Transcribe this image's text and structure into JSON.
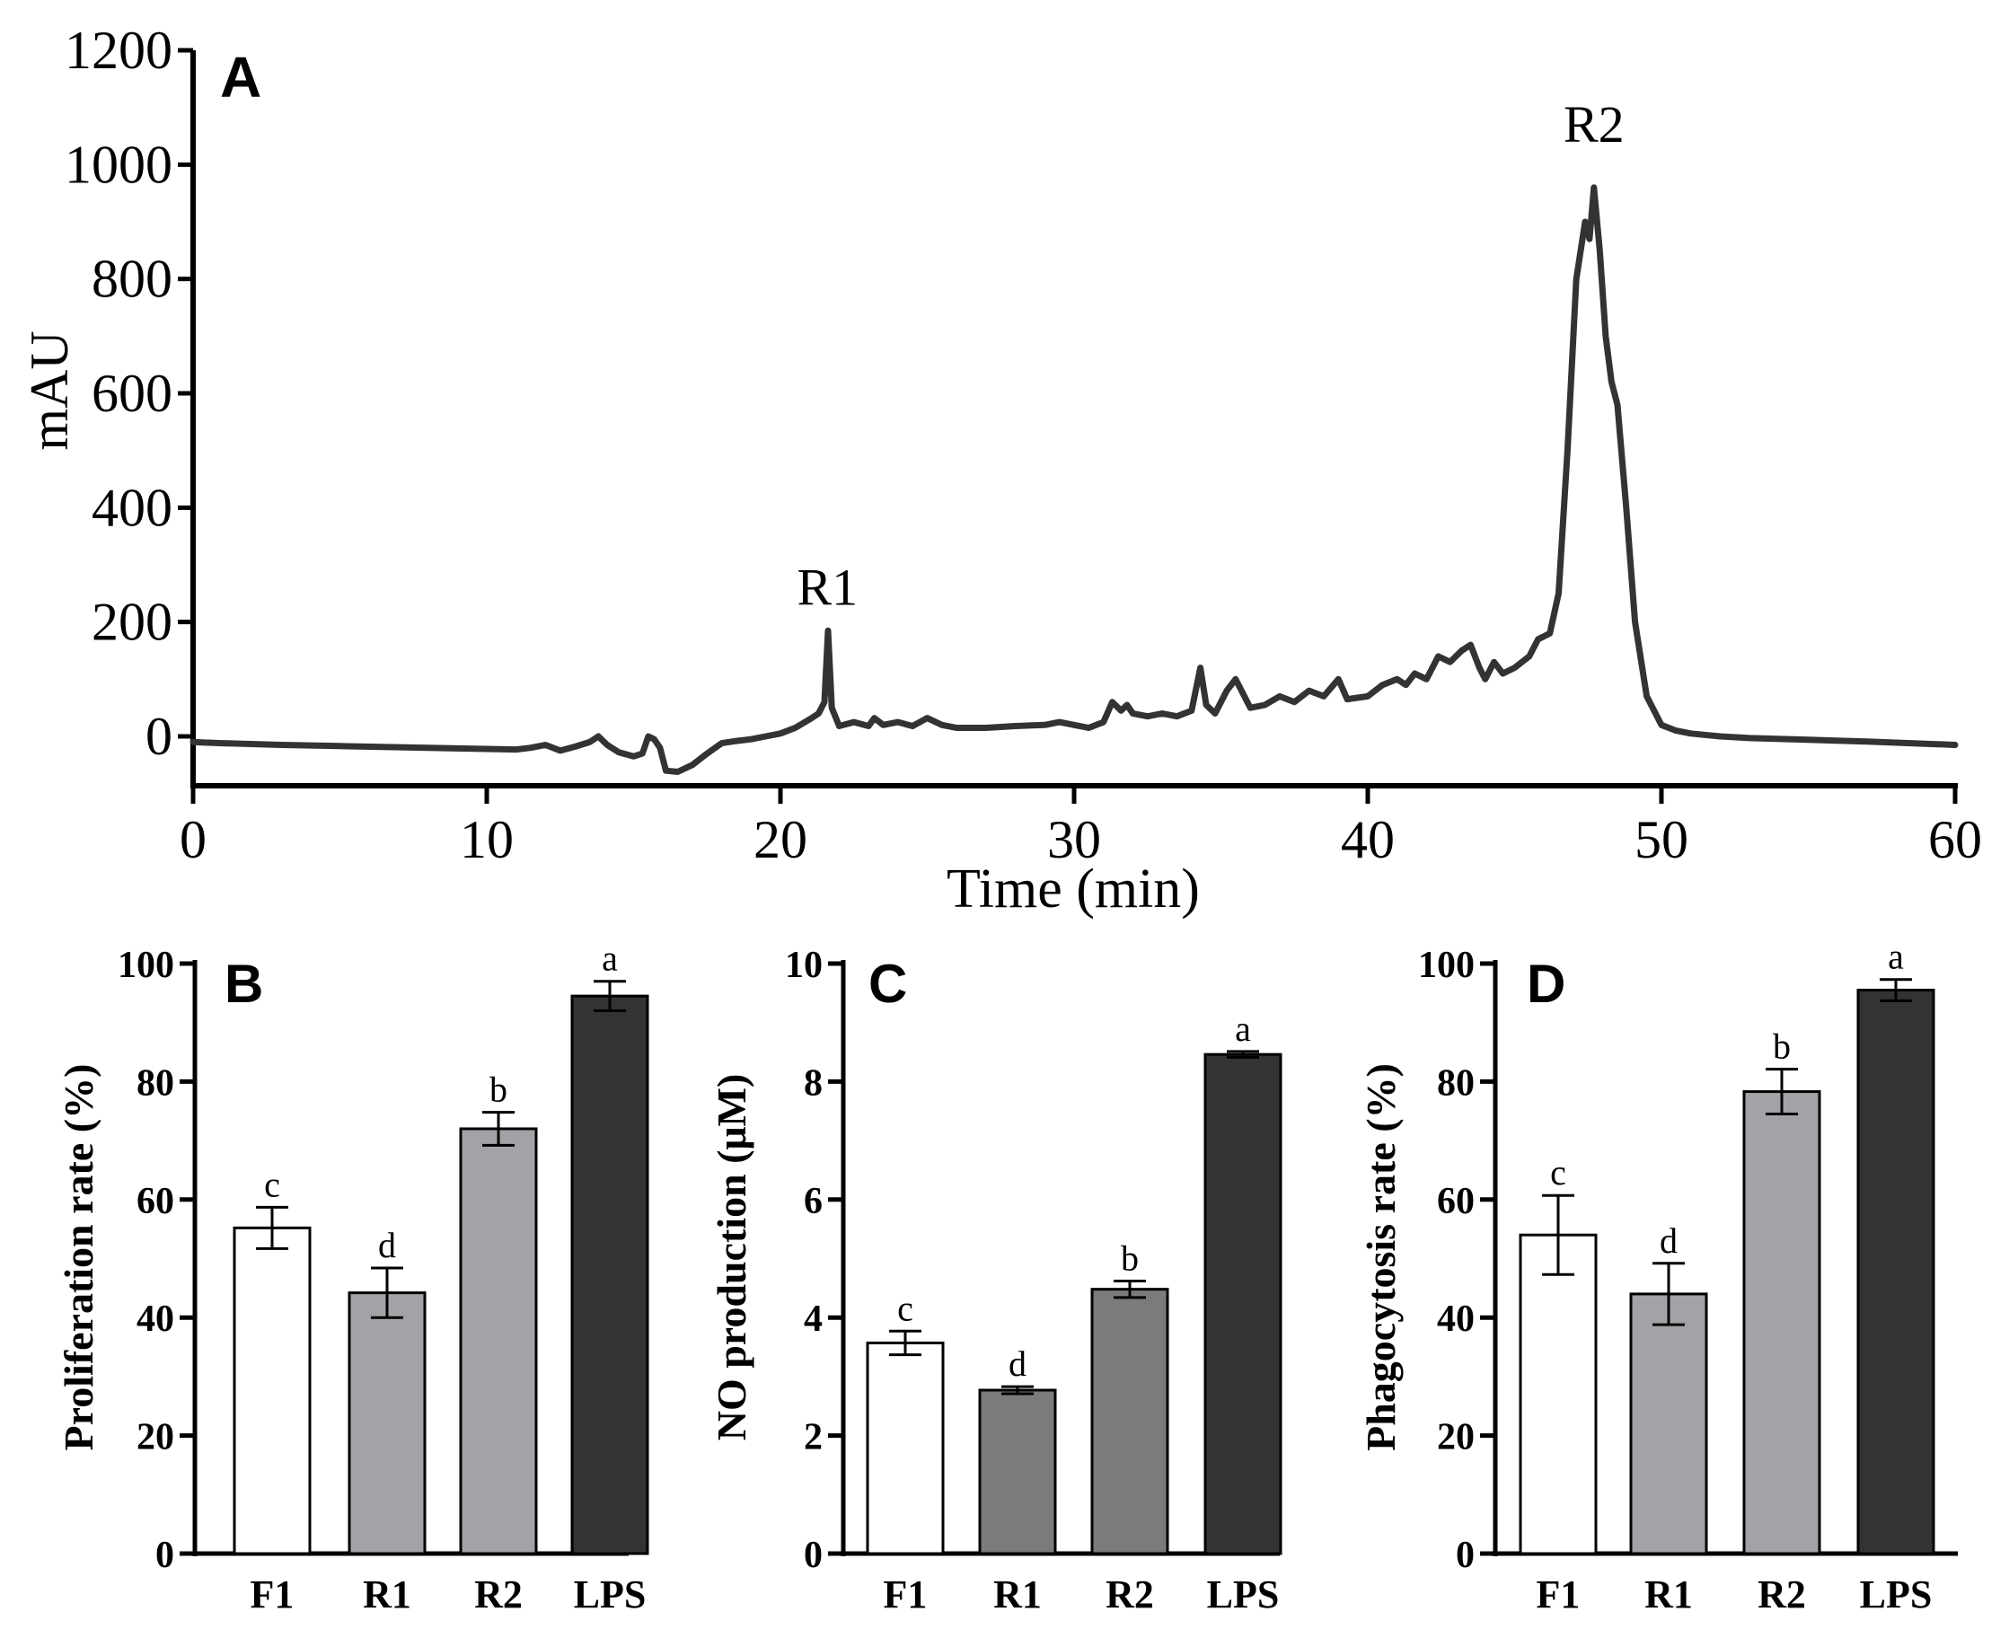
{
  "chart_data": [
    {
      "panel_letter": "A",
      "type": "line",
      "title": "",
      "xlabel": "Time (min)",
      "ylabel": "mAU",
      "xlim": [
        0,
        60
      ],
      "ylim": [
        -80,
        1200
      ],
      "x_ticks": [
        "0",
        "10",
        "20",
        "30",
        "40",
        "50",
        "60"
      ],
      "y_ticks": [
        "0",
        "200",
        "400",
        "600",
        "800",
        "1000",
        "1200"
      ],
      "peak_labels": [
        {
          "text": "R1",
          "x": 21.6,
          "y": 230
        },
        {
          "text": "R2",
          "x": 47.7,
          "y": 1040
        }
      ],
      "series": [
        {
          "name": "chromatogram",
          "color": "#333333",
          "points": [
            [
              0,
              -10
            ],
            [
              1,
              -12
            ],
            [
              3,
              -15
            ],
            [
              5,
              -17
            ],
            [
              8,
              -20
            ],
            [
              10,
              -22
            ],
            [
              11,
              -23
            ],
            [
              11.5,
              -20
            ],
            [
              12,
              -15
            ],
            [
              12.5,
              -25
            ],
            [
              13,
              -18
            ],
            [
              13.5,
              -10
            ],
            [
              13.8,
              0
            ],
            [
              14.1,
              -15
            ],
            [
              14.5,
              -28
            ],
            [
              15,
              -35
            ],
            [
              15.3,
              -30
            ],
            [
              15.5,
              0
            ],
            [
              15.7,
              -5
            ],
            [
              15.9,
              -20
            ],
            [
              16.1,
              -60
            ],
            [
              16.5,
              -62
            ],
            [
              17,
              -50
            ],
            [
              17.5,
              -30
            ],
            [
              18,
              -12
            ],
            [
              18.5,
              -8
            ],
            [
              19,
              -5
            ],
            [
              19.5,
              0
            ],
            [
              20,
              5
            ],
            [
              20.5,
              15
            ],
            [
              21,
              30
            ],
            [
              21.3,
              40
            ],
            [
              21.5,
              60
            ],
            [
              21.62,
              185
            ],
            [
              21.75,
              50
            ],
            [
              22,
              18
            ],
            [
              22.5,
              25
            ],
            [
              23,
              18
            ],
            [
              23.2,
              32
            ],
            [
              23.5,
              20
            ],
            [
              24,
              25
            ],
            [
              24.5,
              18
            ],
            [
              25,
              32
            ],
            [
              25.5,
              20
            ],
            [
              26,
              15
            ],
            [
              27,
              15
            ],
            [
              28,
              18
            ],
            [
              29,
              20
            ],
            [
              29.5,
              25
            ],
            [
              30,
              20
            ],
            [
              30.5,
              15
            ],
            [
              31,
              25
            ],
            [
              31.3,
              60
            ],
            [
              31.6,
              45
            ],
            [
              31.8,
              55
            ],
            [
              32,
              40
            ],
            [
              32.5,
              35
            ],
            [
              33,
              40
            ],
            [
              33.5,
              35
            ],
            [
              34,
              45
            ],
            [
              34.3,
              120
            ],
            [
              34.5,
              55
            ],
            [
              34.8,
              40
            ],
            [
              35.2,
              80
            ],
            [
              35.5,
              100
            ],
            [
              36,
              50
            ],
            [
              36.5,
              55
            ],
            [
              37,
              70
            ],
            [
              37.5,
              60
            ],
            [
              38,
              80
            ],
            [
              38.5,
              70
            ],
            [
              39,
              100
            ],
            [
              39.3,
              65
            ],
            [
              40,
              70
            ],
            [
              40.5,
              90
            ],
            [
              41,
              100
            ],
            [
              41.3,
              90
            ],
            [
              41.6,
              110
            ],
            [
              42,
              100
            ],
            [
              42.4,
              140
            ],
            [
              42.8,
              130
            ],
            [
              43.2,
              150
            ],
            [
              43.5,
              160
            ],
            [
              43.8,
              120
            ],
            [
              44,
              100
            ],
            [
              44.3,
              130
            ],
            [
              44.6,
              110
            ],
            [
              45,
              120
            ],
            [
              45.5,
              140
            ],
            [
              45.8,
              170
            ],
            [
              46.2,
              180
            ],
            [
              46.5,
              250
            ],
            [
              46.8,
              500
            ],
            [
              47.1,
              800
            ],
            [
              47.4,
              900
            ],
            [
              47.55,
              870
            ],
            [
              47.7,
              960
            ],
            [
              47.9,
              850
            ],
            [
              48.1,
              700
            ],
            [
              48.3,
              620
            ],
            [
              48.5,
              580
            ],
            [
              48.8,
              400
            ],
            [
              49.1,
              200
            ],
            [
              49.5,
              70
            ],
            [
              50,
              20
            ],
            [
              50.5,
              10
            ],
            [
              51,
              5
            ],
            [
              52,
              0
            ],
            [
              53,
              -3
            ],
            [
              55,
              -6
            ],
            [
              57,
              -9
            ],
            [
              60,
              -15
            ]
          ]
        }
      ]
    },
    {
      "panel_letter": "B",
      "type": "bar",
      "title": "",
      "xlabel": "",
      "ylabel": "Proliferation rate (%)",
      "ylim": [
        0,
        100
      ],
      "y_ticks": [
        "0",
        "20",
        "40",
        "60",
        "80",
        "100"
      ],
      "categories": [
        "F1",
        "R1",
        "R2",
        "LPS"
      ],
      "values": [
        55.2,
        44.2,
        72.0,
        94.5
      ],
      "errors": [
        3.5,
        4.2,
        2.8,
        2.5
      ],
      "significance": [
        "c",
        "d",
        "b",
        "a"
      ],
      "fill_colors": [
        "#ffffff",
        "#a3a3a7",
        "#a3a3a7",
        "#333333"
      ]
    },
    {
      "panel_letter": "C",
      "type": "bar",
      "title": "",
      "xlabel": "",
      "ylabel": "NO production (μM)",
      "ylim": [
        0,
        10
      ],
      "y_ticks": [
        "0",
        "2",
        "4",
        "6",
        "8",
        "10"
      ],
      "categories": [
        "F1",
        "R1",
        "R2",
        "LPS"
      ],
      "values": [
        3.57,
        2.77,
        4.48,
        8.46
      ],
      "errors": [
        0.2,
        0.06,
        0.14,
        0.05
      ],
      "significance": [
        "c",
        "d",
        "b",
        "a"
      ],
      "fill_colors": [
        "#ffffff",
        "#7b7b7b",
        "#7b7b7b",
        "#333333"
      ]
    },
    {
      "panel_letter": "D",
      "type": "bar",
      "title": "",
      "xlabel": "",
      "ylabel": "Phagocytosis rate (%)",
      "ylim": [
        0,
        100
      ],
      "y_ticks": [
        "0",
        "20",
        "40",
        "60",
        "80",
        "100"
      ],
      "categories": [
        "F1",
        "R1",
        "R2",
        "LPS"
      ],
      "values": [
        54.0,
        44.0,
        78.3,
        95.5
      ],
      "errors": [
        6.7,
        5.2,
        3.8,
        1.8
      ],
      "significance": [
        "c",
        "d",
        "b",
        "a"
      ],
      "fill_colors": [
        "#ffffff",
        "#a3a3a7",
        "#a3a3a7",
        "#333333"
      ]
    }
  ]
}
